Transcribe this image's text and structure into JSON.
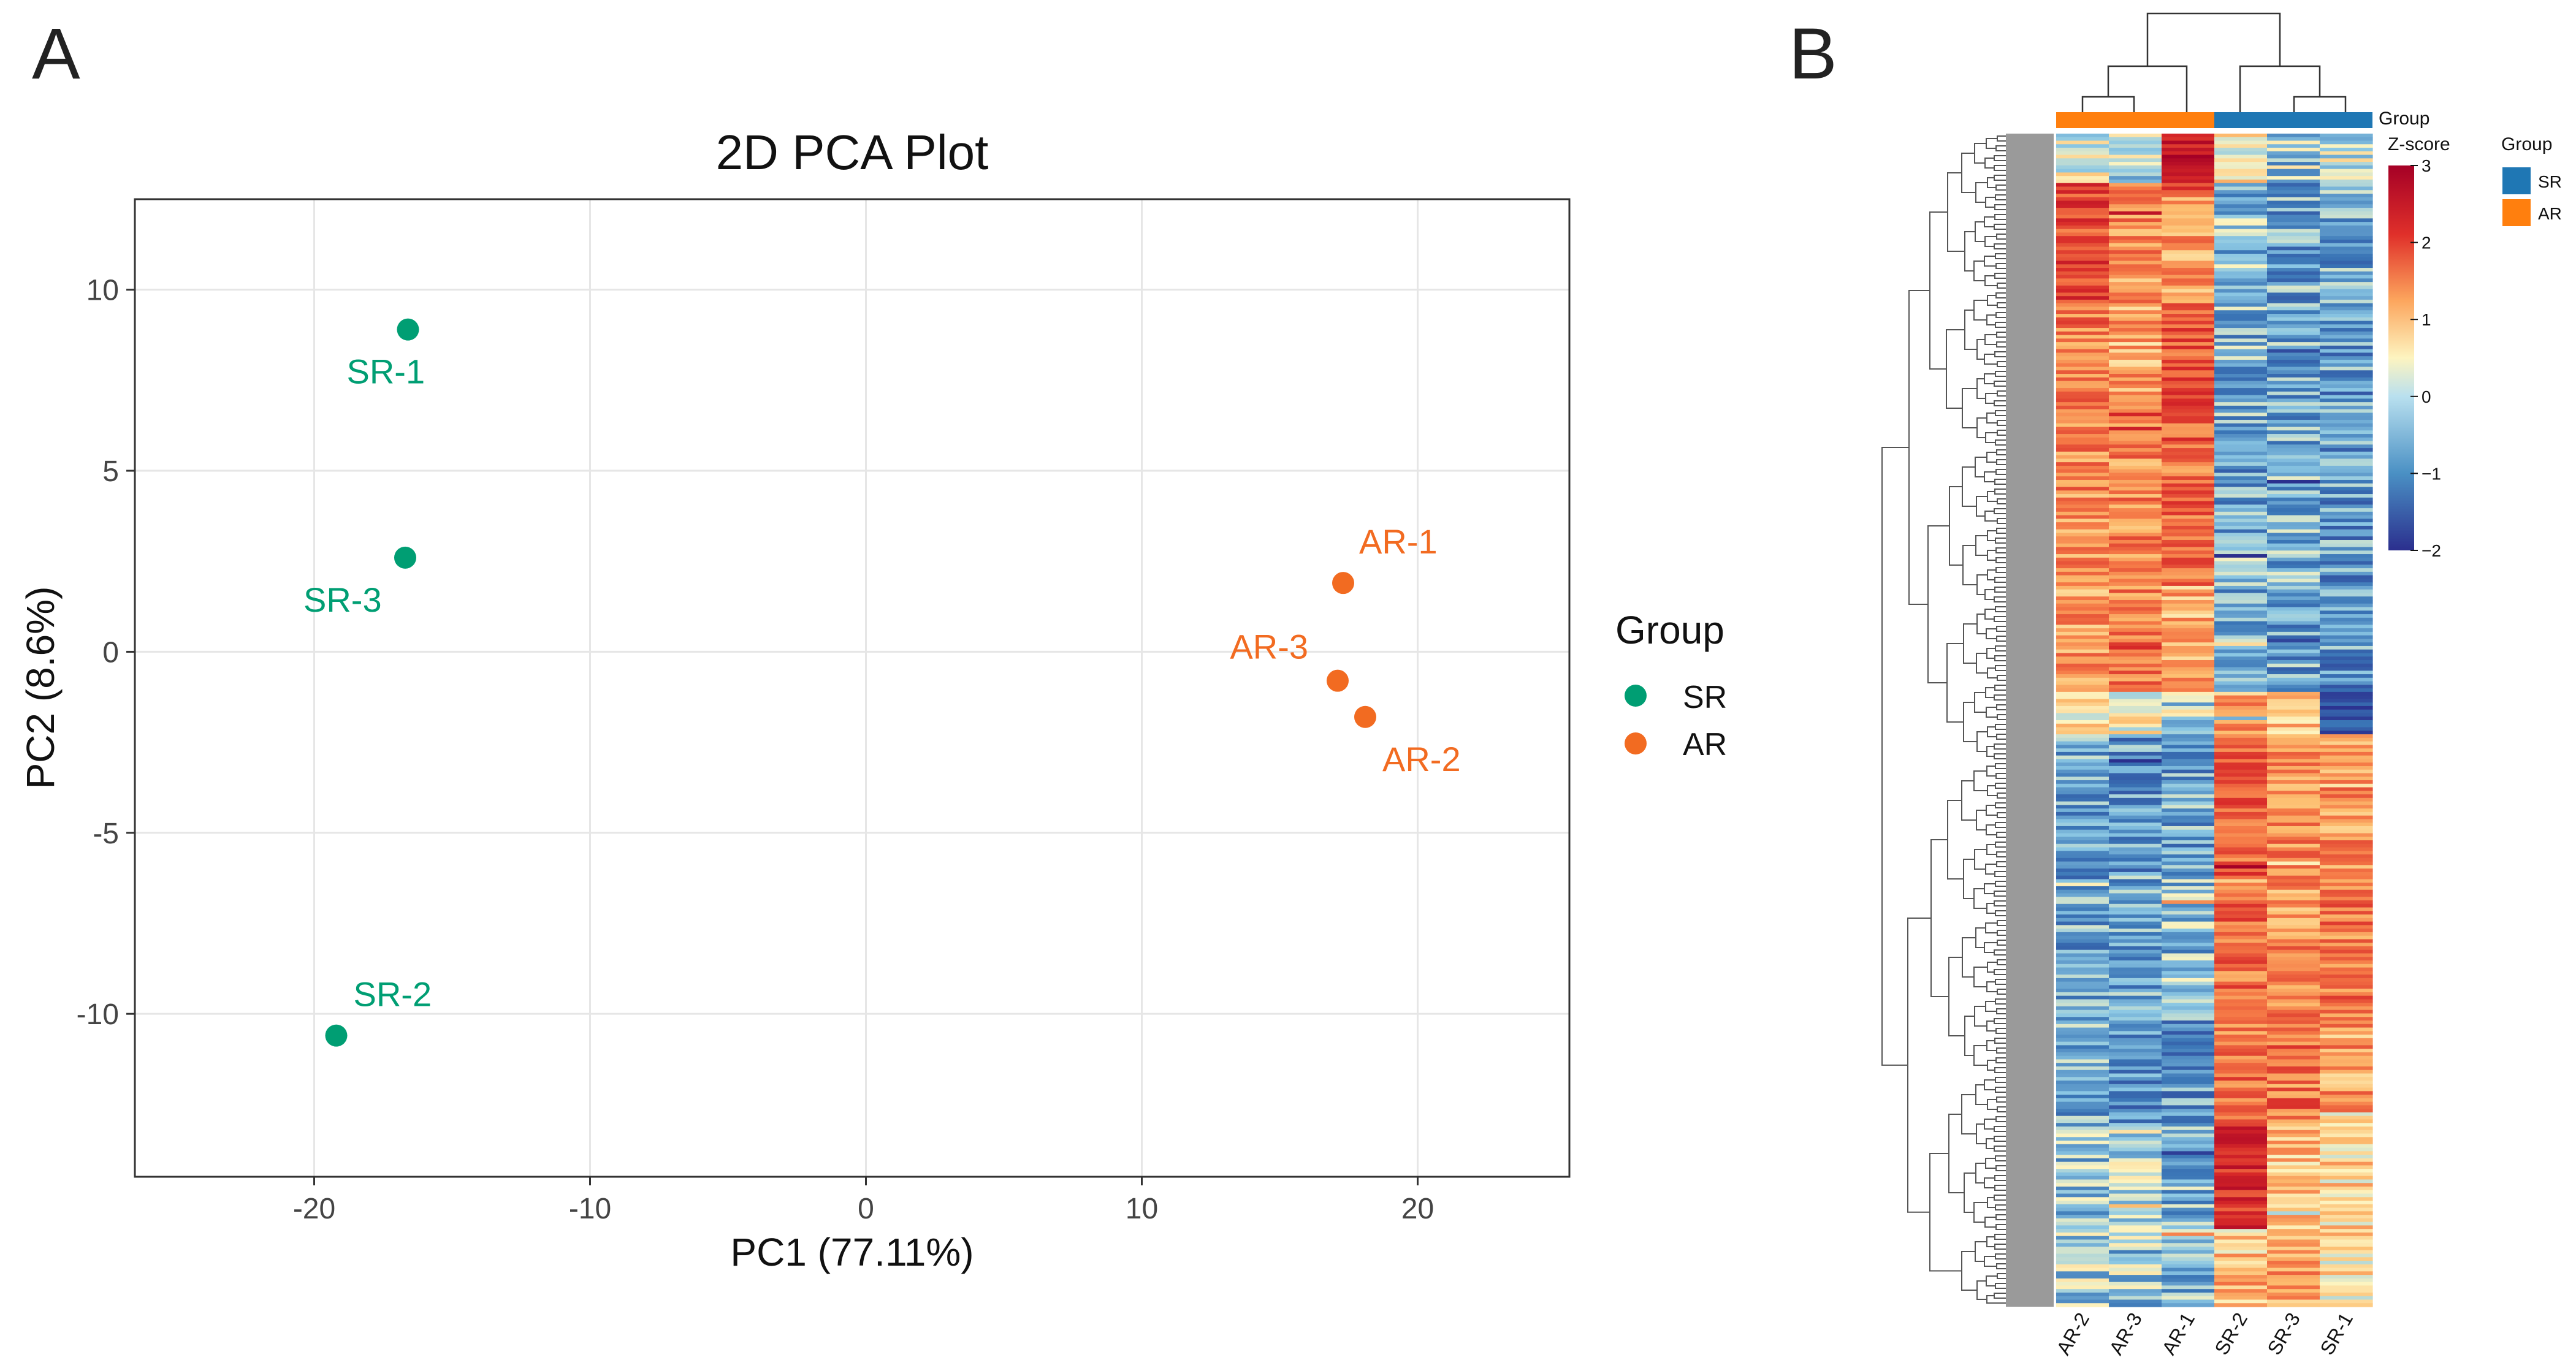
{
  "panels": {
    "a": {
      "letter": "A"
    },
    "b": {
      "letter": "B"
    }
  },
  "colors": {
    "SR": "#009E73",
    "AR": "#F26B21",
    "heat_SR": "#1F77B4",
    "heat_AR": "#FF7F0E"
  },
  "chart_data": [
    {
      "type": "scatter",
      "title": "2D PCA Plot",
      "xlabel": "PC1 (77.11%)",
      "ylabel": "PC2 (8.6%)",
      "xlim": [
        -26.5,
        25.5
      ],
      "ylim": [
        -14.5,
        12.5
      ],
      "xticks": [
        -20,
        -10,
        0,
        10,
        20
      ],
      "yticks": [
        10,
        5,
        0,
        -5,
        -10
      ],
      "xtick_labels": [
        "-20",
        "-10",
        "0",
        "10",
        "20"
      ],
      "ytick_labels": [
        "10",
        "5",
        "0",
        "-5",
        "-10"
      ],
      "grid": true,
      "legend": {
        "title": "Group",
        "position": "right",
        "entries": [
          {
            "name": "SR",
            "color": "#009E73"
          },
          {
            "name": "AR",
            "color": "#F26B21"
          }
        ]
      },
      "points": [
        {
          "label": "SR-1",
          "group": "SR",
          "x": -16.6,
          "y": 8.9
        },
        {
          "label": "SR-3",
          "group": "SR",
          "x": -16.7,
          "y": 2.6
        },
        {
          "label": "SR-2",
          "group": "SR",
          "x": -19.2,
          "y": -10.6
        },
        {
          "label": "AR-1",
          "group": "AR",
          "x": 17.3,
          "y": 1.9
        },
        {
          "label": "AR-3",
          "group": "AR",
          "x": 17.1,
          "y": -0.8
        },
        {
          "label": "AR-2",
          "group": "AR",
          "x": 18.1,
          "y": -1.8
        }
      ]
    },
    {
      "type": "heatmap",
      "columns": [
        "AR-2",
        "AR-3",
        "AR-1",
        "SR-2",
        "SR-3",
        "SR-1"
      ],
      "column_groups": [
        "AR",
        "AR",
        "AR",
        "SR",
        "SR",
        "SR"
      ],
      "group_bar_label": "Group",
      "colorbar": {
        "title": "Z-score",
        "range": [
          -2,
          3
        ],
        "ticks": [
          3,
          2,
          1,
          0,
          -1,
          -2
        ],
        "tick_labels": [
          "3",
          "2",
          "1",
          "0",
          "−1",
          "−2"
        ]
      },
      "group_legend": {
        "title": "Group",
        "entries": [
          {
            "name": "SR",
            "color": "#1F77B4"
          },
          {
            "name": "AR",
            "color": "#FF7F0E"
          }
        ]
      },
      "clusters": [
        {
          "rows": 14,
          "AR-2": 0.0,
          "AR-3": -0.4,
          "AR-1": 2.2,
          "SR-2": 0.2,
          "SR-3": -0.5,
          "SR-1": -0.3
        },
        {
          "rows": 34,
          "AR-2": 1.7,
          "AR-3": 1.1,
          "AR-1": 0.9,
          "SR-2": -0.6,
          "SR-3": -0.8,
          "SR-1": -0.8
        },
        {
          "rows": 40,
          "AR-2": 1.2,
          "AR-3": 0.8,
          "AR-1": 1.5,
          "SR-2": -0.7,
          "SR-3": -0.8,
          "SR-1": -0.9
        },
        {
          "rows": 40,
          "AR-2": 1.0,
          "AR-3": 1.1,
          "AR-1": 1.3,
          "SR-2": -0.8,
          "SR-3": -0.7,
          "SR-1": -0.9
        },
        {
          "rows": 30,
          "AR-2": 0.9,
          "AR-3": 1.2,
          "AR-1": 0.7,
          "SR-2": -0.7,
          "SR-3": -0.8,
          "SR-1": -1.0
        },
        {
          "rows": 12,
          "AR-2": 0.3,
          "AR-3": 0.2,
          "AR-1": -0.3,
          "SR-2": 0.8,
          "SR-3": 0.6,
          "SR-1": -1.3
        },
        {
          "rows": 40,
          "AR-2": -0.8,
          "AR-3": -0.9,
          "AR-1": -0.8,
          "SR-2": 1.4,
          "SR-3": 1.1,
          "SR-1": 1.0
        },
        {
          "rows": 40,
          "AR-2": -0.8,
          "AR-3": -0.8,
          "AR-1": -0.6,
          "SR-2": 1.3,
          "SR-3": 1.0,
          "SR-1": 1.2
        },
        {
          "rows": 30,
          "AR-2": -0.7,
          "AR-3": -0.9,
          "AR-1": -0.9,
          "SR-2": 1.2,
          "SR-3": 1.3,
          "SR-1": 0.9
        },
        {
          "rows": 30,
          "AR-2": -0.6,
          "AR-3": -0.4,
          "AR-1": -0.7,
          "SR-2": 2.0,
          "SR-3": 0.6,
          "SR-1": 0.4
        },
        {
          "rows": 22,
          "AR-2": -0.4,
          "AR-3": -0.5,
          "AR-1": -0.6,
          "SR-2": 0.5,
          "SR-3": 0.9,
          "SR-1": 0.3
        }
      ]
    }
  ]
}
